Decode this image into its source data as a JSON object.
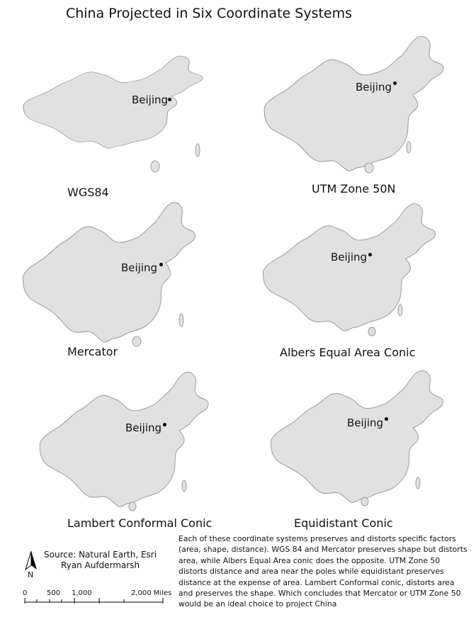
{
  "title": "China Projected in Six Coordinate Systems",
  "city": "Beijing",
  "projections": [
    {
      "id": "wgs84",
      "label": "WGS84"
    },
    {
      "id": "utm",
      "label": "UTM Zone 50N"
    },
    {
      "id": "mercator",
      "label": "Mercator"
    },
    {
      "id": "albers",
      "label": "Albers Equal Area Conic"
    },
    {
      "id": "lambert",
      "label": "Lambert Conformal Conic"
    },
    {
      "id": "equidistant",
      "label": "Equidistant Conic"
    }
  ],
  "source": {
    "line1": "Source: Natural Earth, Esri",
    "line2": "Ryan Aufdermarsh"
  },
  "north_label": "N",
  "scale": {
    "labels": [
      "0",
      "500",
      "1,000",
      "2,000 Miles"
    ]
  },
  "description": "Each of these coordinate systems preserves and distorts specific factors (area, shape, distance). WGS 84 and Mercator  preserves shape but distorts area, while Albers Equal Area conic does the opposite.  UTM Zone 50 distorts distance and area near the poles while equidistant preserves distance at the expense of area. Lambert Conformal conic, distorts area and preserves the shape. Which concludes that Mercator or UTM Zone 50 would be an ideal choice to project China",
  "colors": {
    "land": "#e1e1e1",
    "outline": "#9c9c9c",
    "text": "#111111"
  }
}
